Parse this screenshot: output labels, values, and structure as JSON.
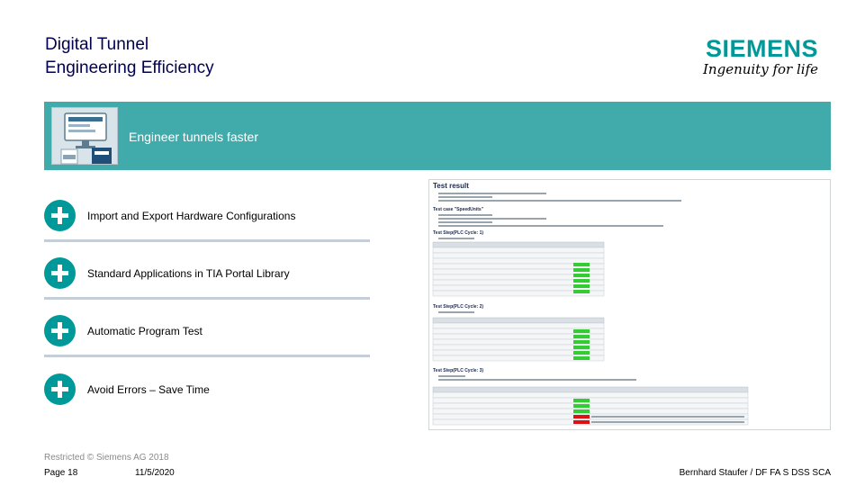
{
  "header": {
    "title_line1": "Digital Tunnel",
    "title_line2": "Engineering Efficiency",
    "logo_word": "SIEMENS",
    "logo_slogan": "Ingenuity for life"
  },
  "banner": {
    "text": "Engineer tunnels faster",
    "thumbnail_icon": "monitor-with-documents-icon"
  },
  "features": [
    {
      "label": "Import and Export Hardware Configurations",
      "icon": "plus-circle-icon"
    },
    {
      "label": "Standard Applications in TIA Portal Library",
      "icon": "plus-circle-icon"
    },
    {
      "label": "Automatic Program Test",
      "icon": "plus-circle-icon"
    },
    {
      "label": "Avoid Errors – Save Time",
      "icon": "plus-circle-icon"
    }
  ],
  "screenshot": {
    "title": "Test result",
    "sections": [
      {
        "heading": "Test case \"SpeedUnits\""
      },
      {
        "heading": "Test Step(PLC Cycle: 1)"
      },
      {
        "heading": "Test Step(PLC Cycle: 2)"
      },
      {
        "heading": "Test Step(PLC Cycle: 3)"
      }
    ]
  },
  "footer": {
    "note": "Restricted © Siemens AG 2018",
    "page": "Page 18",
    "date": "11/5/2020",
    "author": "Bernhard Staufer / DF FA S DSS SCA"
  },
  "colors": {
    "brand_teal": "#009999",
    "banner_teal": "#41aaaa",
    "title_navy": "#000050",
    "divider": "#c5ced6",
    "success_green": "#33cc33",
    "fail_red": "#dd1111"
  }
}
